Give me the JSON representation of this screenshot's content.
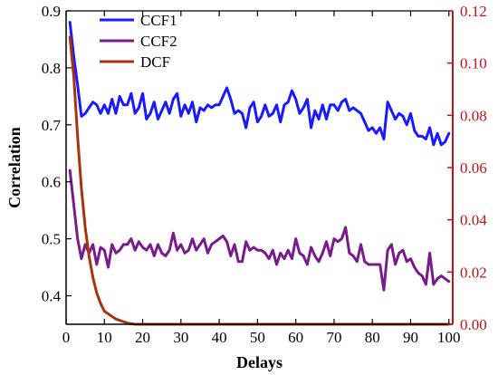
{
  "chart_data": {
    "type": "line",
    "xlabel": "Delays",
    "ylabel_left": "Correlation",
    "ylabel_right": "",
    "xlim": [
      0,
      101
    ],
    "ylim_left": [
      0.35,
      0.9
    ],
    "ylim_right": [
      0,
      0.12
    ],
    "x_ticks": [
      0,
      10,
      20,
      30,
      40,
      50,
      60,
      70,
      80,
      90,
      100
    ],
    "y_left_ticks": [
      0.4,
      0.5,
      0.6,
      0.7,
      0.8,
      0.9
    ],
    "y_right_ticks": [
      0.0,
      0.02,
      0.04,
      0.06,
      0.08,
      0.1,
      0.12
    ],
    "y_left_tick_labels": [
      "0.4",
      "0.5",
      "0.6",
      "0.7",
      "0.8",
      "0.9"
    ],
    "y_right_tick_labels": [
      "0.00",
      "0.02",
      "0.04",
      "0.06",
      "0.08",
      "0.10",
      "0.12"
    ],
    "legend": {
      "placement": "top-left"
    },
    "colors": {
      "ccf1": "#1a1aff",
      "ccf2": "#7a1a8c",
      "dcf": "#a8330f",
      "right_axis": "#c0141a",
      "axis": "#000000"
    },
    "series": [
      {
        "name": "CCF1",
        "axis": "left",
        "x": [
          1,
          2,
          3,
          4,
          5,
          6,
          7,
          8,
          9,
          10,
          11,
          12,
          13,
          14,
          15,
          16,
          17,
          18,
          19,
          20,
          21,
          22,
          23,
          24,
          25,
          26,
          27,
          28,
          29,
          30,
          31,
          32,
          33,
          34,
          35,
          36,
          37,
          38,
          39,
          40,
          41,
          42,
          43,
          44,
          45,
          46,
          47,
          48,
          49,
          50,
          51,
          52,
          53,
          54,
          55,
          56,
          57,
          58,
          59,
          60,
          61,
          62,
          63,
          64,
          65,
          66,
          67,
          68,
          69,
          70,
          71,
          72,
          73,
          74,
          75,
          76,
          77,
          78,
          79,
          80,
          81,
          82,
          83,
          84,
          85,
          86,
          87,
          88,
          89,
          90,
          91,
          92,
          93,
          94,
          95,
          96,
          97,
          98,
          99,
          100
        ],
        "values": [
          0.88,
          0.82,
          0.77,
          0.715,
          0.72,
          0.73,
          0.74,
          0.735,
          0.72,
          0.735,
          0.72,
          0.745,
          0.72,
          0.75,
          0.735,
          0.735,
          0.755,
          0.72,
          0.73,
          0.755,
          0.71,
          0.72,
          0.74,
          0.71,
          0.725,
          0.74,
          0.72,
          0.745,
          0.755,
          0.715,
          0.735,
          0.72,
          0.74,
          0.705,
          0.73,
          0.725,
          0.735,
          0.73,
          0.735,
          0.735,
          0.75,
          0.765,
          0.745,
          0.72,
          0.725,
          0.72,
          0.695,
          0.73,
          0.74,
          0.705,
          0.715,
          0.735,
          0.715,
          0.72,
          0.735,
          0.705,
          0.735,
          0.74,
          0.76,
          0.745,
          0.72,
          0.73,
          0.745,
          0.695,
          0.725,
          0.71,
          0.735,
          0.71,
          0.735,
          0.735,
          0.725,
          0.74,
          0.745,
          0.725,
          0.73,
          0.725,
          0.72,
          0.705,
          0.69,
          0.695,
          0.685,
          0.695,
          0.675,
          0.74,
          0.725,
          0.71,
          0.72,
          0.715,
          0.7,
          0.72,
          0.69,
          0.68,
          0.68,
          0.675,
          0.695,
          0.665,
          0.685,
          0.665,
          0.67,
          0.685
        ]
      },
      {
        "name": "CCF2",
        "axis": "left",
        "x": [
          1,
          2,
          3,
          4,
          5,
          6,
          7,
          8,
          9,
          10,
          11,
          12,
          13,
          14,
          15,
          16,
          17,
          18,
          19,
          20,
          21,
          22,
          23,
          24,
          25,
          26,
          27,
          28,
          29,
          30,
          31,
          32,
          33,
          34,
          35,
          36,
          37,
          38,
          39,
          40,
          41,
          42,
          43,
          44,
          45,
          46,
          47,
          48,
          49,
          50,
          51,
          52,
          53,
          54,
          55,
          56,
          57,
          58,
          59,
          60,
          61,
          62,
          63,
          64,
          65,
          66,
          67,
          68,
          69,
          70,
          71,
          72,
          73,
          74,
          75,
          76,
          77,
          78,
          79,
          80,
          81,
          82,
          83,
          84,
          85,
          86,
          87,
          88,
          89,
          90,
          91,
          92,
          93,
          94,
          95,
          96,
          97,
          98,
          99,
          100
        ],
        "values": [
          0.62,
          0.56,
          0.5,
          0.465,
          0.49,
          0.475,
          0.49,
          0.455,
          0.485,
          0.48,
          0.45,
          0.49,
          0.475,
          0.48,
          0.49,
          0.49,
          0.5,
          0.48,
          0.495,
          0.485,
          0.48,
          0.49,
          0.47,
          0.49,
          0.475,
          0.47,
          0.48,
          0.51,
          0.48,
          0.49,
          0.475,
          0.48,
          0.5,
          0.48,
          0.49,
          0.5,
          0.475,
          0.49,
          0.495,
          0.5,
          0.505,
          0.495,
          0.47,
          0.49,
          0.46,
          0.46,
          0.495,
          0.48,
          0.485,
          0.48,
          0.48,
          0.475,
          0.465,
          0.48,
          0.455,
          0.475,
          0.465,
          0.48,
          0.465,
          0.5,
          0.475,
          0.47,
          0.455,
          0.485,
          0.47,
          0.46,
          0.475,
          0.495,
          0.47,
          0.5,
          0.495,
          0.5,
          0.52,
          0.475,
          0.47,
          0.46,
          0.49,
          0.46,
          0.455,
          0.455,
          0.455,
          0.455,
          0.41,
          0.48,
          0.49,
          0.455,
          0.475,
          0.48,
          0.46,
          0.465,
          0.45,
          0.44,
          0.435,
          0.42,
          0.475,
          0.42,
          0.43,
          0.435,
          0.43,
          0.425
        ]
      },
      {
        "name": "DCF",
        "axis": "right",
        "x": [
          1,
          2,
          3,
          4,
          5,
          6,
          7,
          8,
          9,
          10,
          11,
          12,
          13,
          14,
          15,
          16,
          17,
          18,
          19,
          20,
          21,
          22,
          23,
          24,
          25,
          26,
          27,
          28,
          29,
          30,
          31,
          32,
          33,
          34,
          35,
          36,
          37,
          38,
          39,
          40,
          41,
          42,
          43,
          44,
          45,
          46,
          47,
          48,
          49,
          50,
          51,
          52,
          53,
          54,
          55,
          56,
          57,
          58,
          59,
          60,
          61,
          62,
          63,
          64,
          65,
          66,
          67,
          68,
          69,
          70,
          71,
          72,
          73,
          74,
          75,
          76,
          77,
          78,
          79,
          80,
          81,
          82,
          83,
          84,
          85,
          86,
          87,
          88,
          89,
          90,
          91,
          92,
          93,
          94,
          95,
          96,
          97,
          98,
          99,
          100
        ],
        "values": [
          0.11,
          0.095,
          0.072,
          0.052,
          0.037,
          0.026,
          0.018,
          0.012,
          0.008,
          0.005,
          0.004,
          0.003,
          0.002,
          0.0015,
          0.001,
          0.0005,
          0.0002,
          0,
          0,
          0,
          0,
          0,
          0,
          0,
          0,
          0,
          0,
          0,
          0,
          0,
          0,
          0,
          0,
          0,
          0,
          0,
          0,
          0,
          0,
          0,
          0,
          0,
          0,
          0,
          0,
          0,
          0,
          0,
          0,
          0,
          0,
          0,
          0,
          0,
          0,
          0,
          0,
          0,
          0,
          0,
          0,
          0,
          0,
          0,
          0,
          0,
          0,
          0,
          0,
          0,
          0,
          0,
          0,
          0,
          0,
          0,
          0,
          0,
          0,
          0,
          0,
          0,
          0,
          0,
          0,
          0,
          0,
          0,
          0,
          0,
          0,
          0,
          0,
          0,
          0,
          0,
          0,
          0,
          0,
          0
        ]
      }
    ]
  }
}
